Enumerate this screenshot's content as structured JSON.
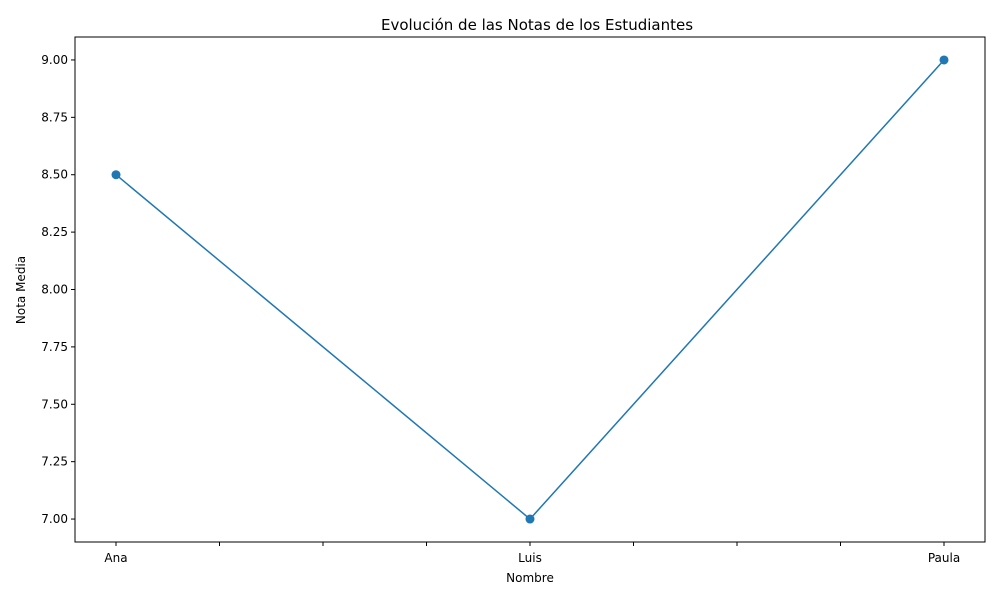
{
  "chart_data": {
    "type": "line",
    "title": "Evolución de las Notas de los Estudiantes",
    "xlabel": "Nombre",
    "ylabel": "Nota Media",
    "categories": [
      "Ana",
      "Luis",
      "Paula"
    ],
    "series": [
      {
        "values": [
          8.5,
          7.0,
          9.0
        ],
        "color": "#1f77b4",
        "marker": "circle"
      }
    ],
    "ylim": [
      6.9,
      9.1
    ],
    "yticks": [
      "7.00",
      "7.25",
      "7.50",
      "7.75",
      "8.00",
      "8.25",
      "8.50",
      "8.75",
      "9.00"
    ],
    "x_minor_ticks_between": 3,
    "grid": false
  }
}
